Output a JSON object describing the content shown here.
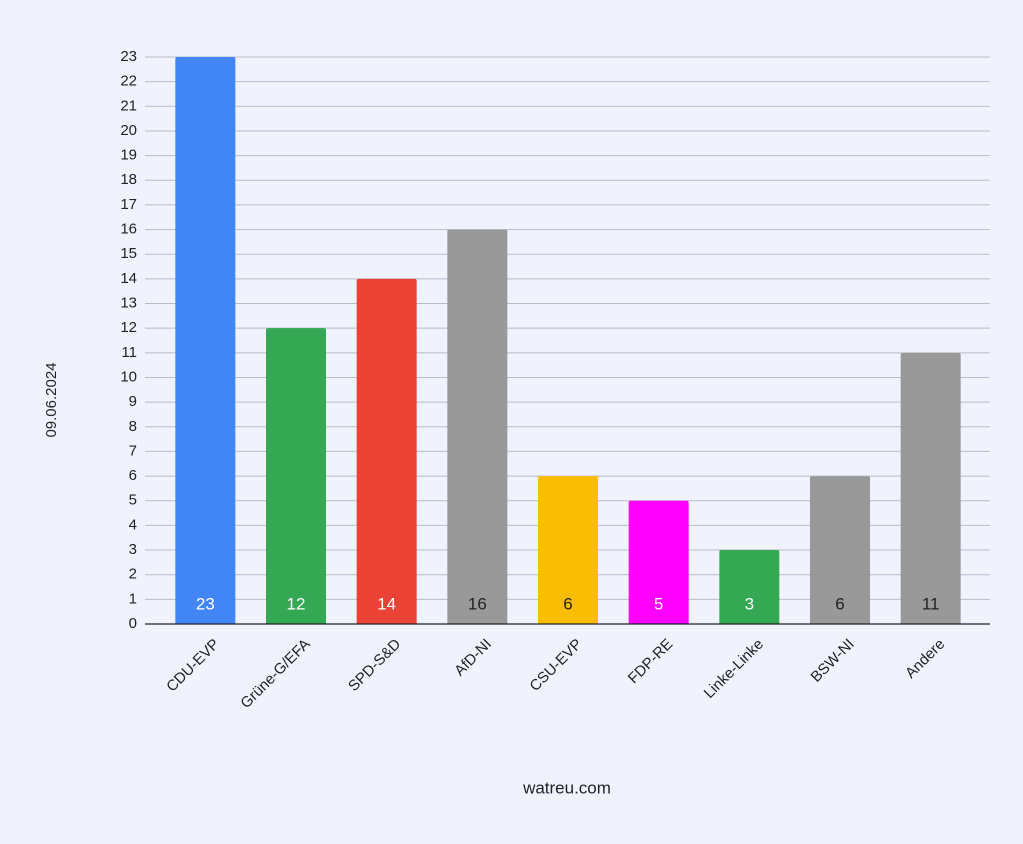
{
  "chart_data": {
    "type": "bar",
    "y_label": "09.06.2024",
    "x_label": "watreu.com",
    "categories": [
      "CDU-EVP",
      "Grüne-G/EFA",
      "SPD-S&D",
      "AfD-NI",
      "CSU-EVP",
      "FDP-RE",
      "Linke-Linke",
      "BSW-NI",
      "Andere"
    ],
    "values": [
      23,
      12,
      14,
      16,
      6,
      5,
      3,
      6,
      11
    ],
    "colors": [
      "#4285f4",
      "#34a853",
      "#ea4335",
      "#999999",
      "#fbbc04",
      "#ff00ff",
      "#34a853",
      "#999999",
      "#999999"
    ],
    "ylim": [
      0,
      23
    ],
    "yticks": [
      0,
      1,
      2,
      3,
      4,
      5,
      6,
      7,
      8,
      9,
      10,
      11,
      12,
      13,
      14,
      15,
      16,
      17,
      18,
      19,
      20,
      21,
      22,
      23
    ],
    "grid": true
  }
}
